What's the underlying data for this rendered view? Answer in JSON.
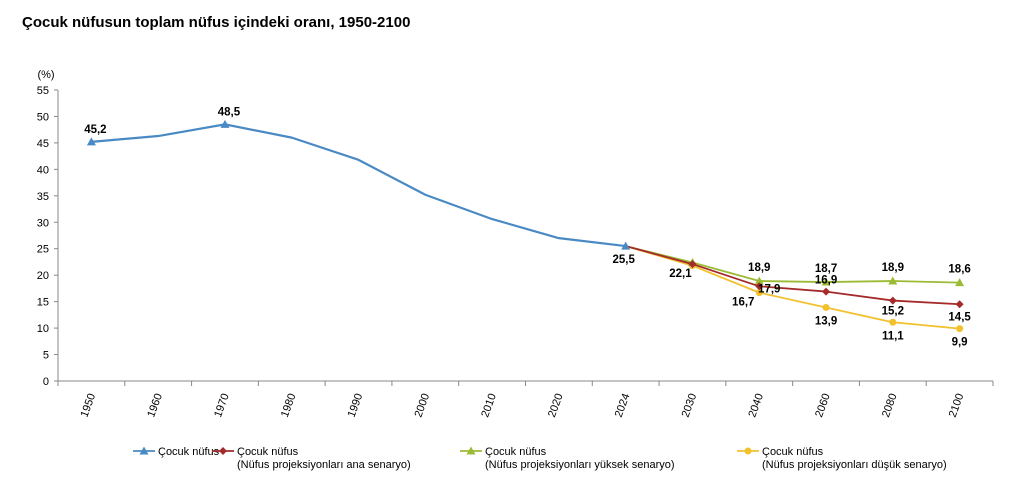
{
  "chart_data": {
    "type": "line",
    "title": "Çocuk nüfusun toplam nüfus içindeki oranı, 1950-2100",
    "ylabel": "(%)",
    "xlabel": "",
    "categories": [
      "1950",
      "1960",
      "1970",
      "1980",
      "1990",
      "2000",
      "2010",
      "2020",
      "2024",
      "2030",
      "2040",
      "2060",
      "2080",
      "2100"
    ],
    "ylim": [
      0,
      55
    ],
    "yticks": [
      0,
      5,
      10,
      15,
      20,
      25,
      30,
      35,
      40,
      45,
      50,
      55
    ],
    "grid": false,
    "legend_position": "bottom",
    "series": [
      {
        "name": "Çocuk nüfus",
        "color": "#4a8ac4",
        "marker": "triangle",
        "x": [
          "1950",
          "1960",
          "1970",
          "1980",
          "1990",
          "2000",
          "2010",
          "2020",
          "2024"
        ],
        "values": [
          45.2,
          46.3,
          48.5,
          46.0,
          41.8,
          35.2,
          30.6,
          27.0,
          25.5
        ],
        "labels": [
          "45,2",
          null,
          "48,5",
          null,
          null,
          null,
          null,
          null,
          "25,5"
        ]
      },
      {
        "name": "Çocuk nüfus\n(Nüfus projeksiyonları ana senaryo)",
        "color": "#a52a2a",
        "marker": "diamond",
        "x": [
          "2024",
          "2030",
          "2040",
          "2060",
          "2080",
          "2100"
        ],
        "values": [
          25.5,
          22.1,
          17.9,
          16.9,
          15.2,
          14.5
        ],
        "labels": [
          null,
          "22,1",
          "17,9",
          "16,9",
          "15,2",
          "14,5"
        ]
      },
      {
        "name": "Çocuk nüfus\n(Nüfus projeksiyonları yüksek senaryo)",
        "color": "#9bbb34",
        "marker": "triangle",
        "x": [
          "2024",
          "2030",
          "2040",
          "2060",
          "2080",
          "2100"
        ],
        "values": [
          25.5,
          22.4,
          18.9,
          18.7,
          18.9,
          18.6
        ],
        "labels": [
          null,
          null,
          "18,9",
          "18,7",
          "18,9",
          "18,6"
        ]
      },
      {
        "name": "Çocuk nüfus\n(Nüfus projeksiyonları düşük senaryo)",
        "color": "#f2c12e",
        "marker": "circle",
        "x": [
          "2024",
          "2030",
          "2040",
          "2060",
          "2080",
          "2100"
        ],
        "values": [
          25.5,
          21.8,
          16.7,
          13.9,
          11.1,
          9.9
        ],
        "labels": [
          null,
          null,
          "16,7",
          "13,9",
          "11,1",
          "9,9"
        ]
      }
    ]
  }
}
